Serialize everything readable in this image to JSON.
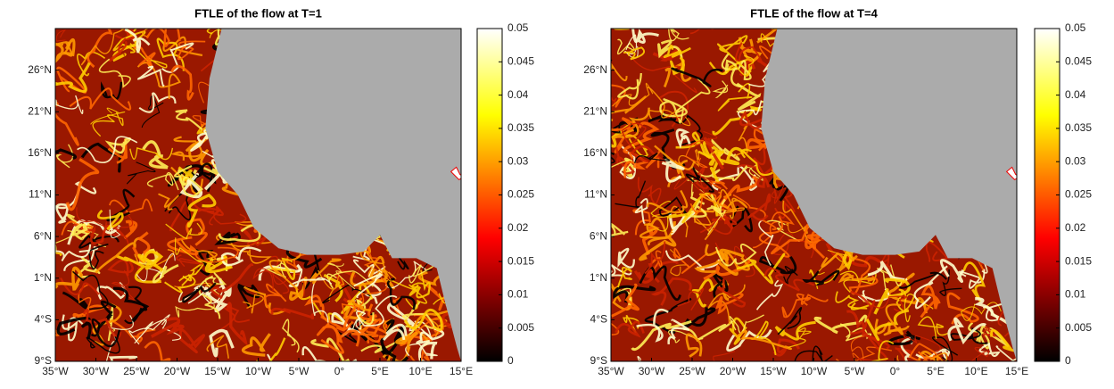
{
  "chart_data": [
    {
      "type": "heatmap",
      "title": "FTLE of the flow at T=1",
      "xlim": [
        -35,
        15
      ],
      "ylim": [
        -9,
        31
      ],
      "xticks": [
        {
          "value": -35,
          "label": "35°W"
        },
        {
          "value": -30,
          "label": "30°W"
        },
        {
          "value": -25,
          "label": "25°W"
        },
        {
          "value": -20,
          "label": "20°W"
        },
        {
          "value": -15,
          "label": "15°W"
        },
        {
          "value": -10,
          "label": "10°W"
        },
        {
          "value": -5,
          "label": "5°W"
        },
        {
          "value": 0,
          "label": "0°"
        },
        {
          "value": 5,
          "label": "5°E"
        },
        {
          "value": 10,
          "label": "10°E"
        },
        {
          "value": 15,
          "label": "15°E"
        }
      ],
      "yticks": [
        {
          "value": -9,
          "label": "9°S"
        },
        {
          "value": -4,
          "label": "4°S"
        },
        {
          "value": 1,
          "label": "1°N"
        },
        {
          "value": 6,
          "label": "6°N"
        },
        {
          "value": 11,
          "label": "11°N"
        },
        {
          "value": 16,
          "label": "16°N"
        },
        {
          "value": 21,
          "label": "21°N"
        },
        {
          "value": 26,
          "label": "26°N"
        }
      ],
      "colorbar": {
        "lim": [
          0,
          0.05
        ],
        "ticks": [
          0,
          0.005,
          0.01,
          0.015,
          0.02,
          0.025,
          0.03,
          0.035,
          0.04,
          0.045,
          0.05
        ],
        "colormap": "hot"
      }
    },
    {
      "type": "heatmap",
      "title": "FTLE of the flow at T=4",
      "xlim": [
        -35,
        15
      ],
      "ylim": [
        -9,
        31
      ],
      "xticks": [
        {
          "value": -35,
          "label": "35°W"
        },
        {
          "value": -30,
          "label": "30°W"
        },
        {
          "value": -25,
          "label": "25°W"
        },
        {
          "value": -20,
          "label": "20°W"
        },
        {
          "value": -15,
          "label": "15°W"
        },
        {
          "value": -10,
          "label": "10°W"
        },
        {
          "value": -5,
          "label": "5°W"
        },
        {
          "value": 0,
          "label": "0°"
        },
        {
          "value": 5,
          "label": "5°E"
        },
        {
          "value": 10,
          "label": "10°E"
        },
        {
          "value": 15,
          "label": "15°E"
        }
      ],
      "yticks": [
        {
          "value": -9,
          "label": "9°S"
        },
        {
          "value": -4,
          "label": "4°S"
        },
        {
          "value": 1,
          "label": "1°N"
        },
        {
          "value": 6,
          "label": "6°N"
        },
        {
          "value": 11,
          "label": "11°N"
        },
        {
          "value": 16,
          "label": "16°N"
        },
        {
          "value": 21,
          "label": "21°N"
        },
        {
          "value": 26,
          "label": "26°N"
        }
      ],
      "colorbar": {
        "lim": [
          0,
          0.05
        ],
        "ticks": [
          0,
          0.005,
          0.01,
          0.015,
          0.02,
          0.025,
          0.03,
          0.035,
          0.04,
          0.045,
          0.05
        ],
        "colormap": "hot"
      }
    }
  ]
}
